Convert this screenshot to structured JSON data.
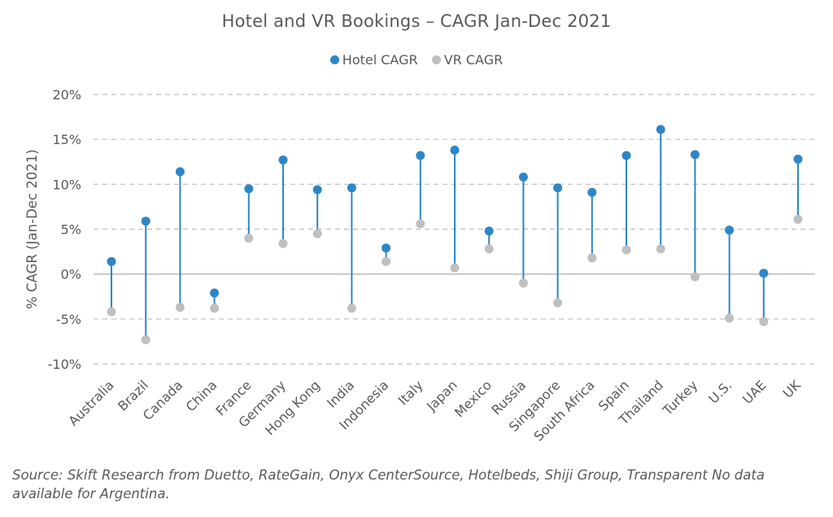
{
  "chart_data": {
    "type": "dumbbell",
    "title": "Hotel and VR Bookings – CAGR Jan-Dec 2021",
    "ylabel": "% CAGR (Jan-Dec 2021)",
    "xlabel": "",
    "ylim": [
      -10,
      20
    ],
    "y_ticks": [
      "-10%",
      "-5%",
      "0%",
      "5%",
      "10%",
      "15%",
      "20%"
    ],
    "y_tick_values": [
      -10,
      -5,
      0,
      5,
      10,
      15,
      20
    ],
    "grid": "horizontal dashed",
    "legend_position": "top-center",
    "categories": [
      "Australia",
      "Brazil",
      "Canada",
      "China",
      "France",
      "Germany",
      "Hong Kong",
      "India",
      "Indonesia",
      "Italy",
      "Japan",
      "Mexico",
      "Russia",
      "Singapore",
      "South Africa",
      "Spain",
      "Thailand",
      "Turkey",
      "U.S.",
      "UAE",
      "UK"
    ],
    "series": [
      {
        "name": "Hotel CAGR",
        "color": "#2E86C8",
        "values": [
          1.4,
          5.9,
          11.4,
          -2.1,
          9.5,
          12.7,
          9.4,
          9.6,
          2.9,
          13.2,
          13.8,
          4.8,
          10.8,
          9.6,
          9.1,
          13.2,
          16.1,
          13.3,
          4.9,
          0.1,
          12.8
        ]
      },
      {
        "name": "VR CAGR",
        "color": "#BFBFBF",
        "values": [
          -4.2,
          -7.3,
          -3.7,
          -3.8,
          4.0,
          3.4,
          4.5,
          -3.8,
          1.4,
          5.6,
          0.7,
          2.8,
          -1.0,
          -3.2,
          1.8,
          2.7,
          2.8,
          -0.3,
          -4.9,
          -5.3,
          6.1
        ]
      }
    ]
  },
  "legend": {
    "items": [
      {
        "label": "Hotel CAGR",
        "color": "#2E86C8"
      },
      {
        "label": "VR CAGR",
        "color": "#BFBFBF"
      }
    ]
  },
  "source_note": "Source: Skift Research from Duetto, RateGain, Onyx CenterSource, Hotelbeds, Shiji Group, Transparent No data available for Argentina."
}
